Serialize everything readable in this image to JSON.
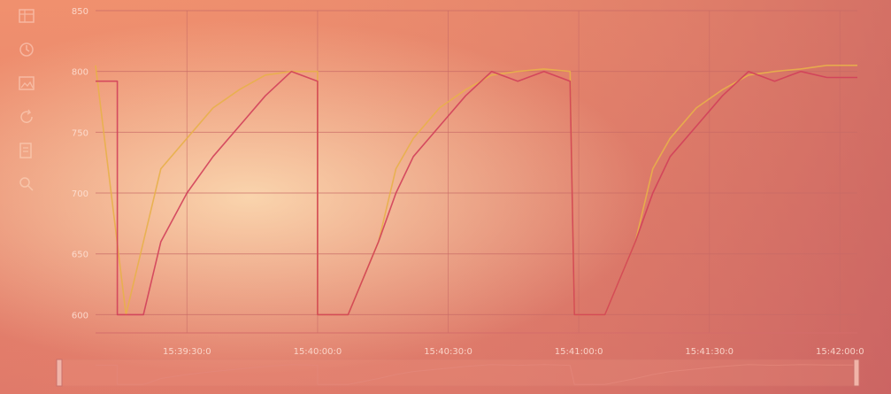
{
  "toolbar": {
    "icons": [
      "table-icon",
      "restore-icon",
      "save-image-icon",
      "refresh-icon",
      "data-view-icon",
      "zoom-icon"
    ]
  },
  "colors": {
    "background_top": "#f0906e",
    "series_1": "#e8b04a",
    "series_2": "#d2405a",
    "grid": "#c86a66"
  },
  "chart_data": {
    "type": "line",
    "title": "",
    "xlabel": "",
    "ylabel": "",
    "ylim": [
      585,
      850
    ],
    "yticks": [
      600,
      650,
      700,
      750,
      800,
      850
    ],
    "xlim": [
      "15:39:09",
      "15:42:04"
    ],
    "xticks": [
      "15:39:30:0",
      "15:40:00:0",
      "15:40:30:0",
      "15:41:00:0",
      "15:41:30:0",
      "15:42:00:0"
    ],
    "grid": true,
    "has_datazoom_slider": true,
    "series": [
      {
        "x": [
          "15:39:09",
          "15:39:16",
          "15:39:20",
          "15:39:24",
          "15:39:30",
          "15:39:36",
          "15:39:42",
          "15:39:48",
          "15:39:54",
          "15:40:00",
          "15:40:00",
          "15:40:07",
          "15:40:07",
          "15:40:14",
          "15:40:18",
          "15:40:22",
          "15:40:28",
          "15:40:34",
          "15:40:40",
          "15:40:46",
          "15:40:52",
          "15:40:58",
          "15:40:59",
          "15:41:06",
          "15:41:06",
          "15:41:13",
          "15:41:17",
          "15:41:21",
          "15:41:27",
          "15:41:33",
          "15:41:39",
          "15:41:45",
          "15:41:51",
          "15:41:57",
          "15:42:04"
        ],
        "values": [
          805,
          600,
          660,
          720,
          745,
          770,
          785,
          797,
          800,
          800,
          600,
          600,
          600,
          660,
          720,
          745,
          770,
          785,
          797,
          800,
          802,
          800,
          600,
          600,
          600,
          660,
          720,
          745,
          770,
          785,
          797,
          800,
          802,
          805,
          805
        ],
        "note_color": "#e8b04a"
      },
      {
        "x": [
          "15:39:09",
          "15:39:14",
          "15:39:14",
          "15:39:20",
          "15:39:24",
          "15:39:30",
          "15:39:36",
          "15:39:42",
          "15:39:48",
          "15:39:54",
          "15:40:00",
          "15:40:00",
          "15:40:07",
          "15:40:07",
          "15:40:14",
          "15:40:18",
          "15:40:22",
          "15:40:28",
          "15:40:34",
          "15:40:40",
          "15:40:46",
          "15:40:52",
          "15:40:58",
          "15:40:59",
          "15:41:06",
          "15:41:06",
          "15:41:13",
          "15:41:17",
          "15:41:21",
          "15:41:27",
          "15:41:33",
          "15:41:39",
          "15:41:45",
          "15:41:51",
          "15:41:57",
          "15:42:04"
        ],
        "values": [
          792,
          792,
          600,
          600,
          660,
          700,
          730,
          755,
          780,
          800,
          792,
          600,
          600,
          600,
          660,
          700,
          730,
          755,
          780,
          800,
          792,
          800,
          792,
          600,
          600,
          600,
          660,
          700,
          730,
          755,
          780,
          800,
          792,
          800,
          795,
          795
        ],
        "note_color": "#d2405a"
      }
    ]
  }
}
